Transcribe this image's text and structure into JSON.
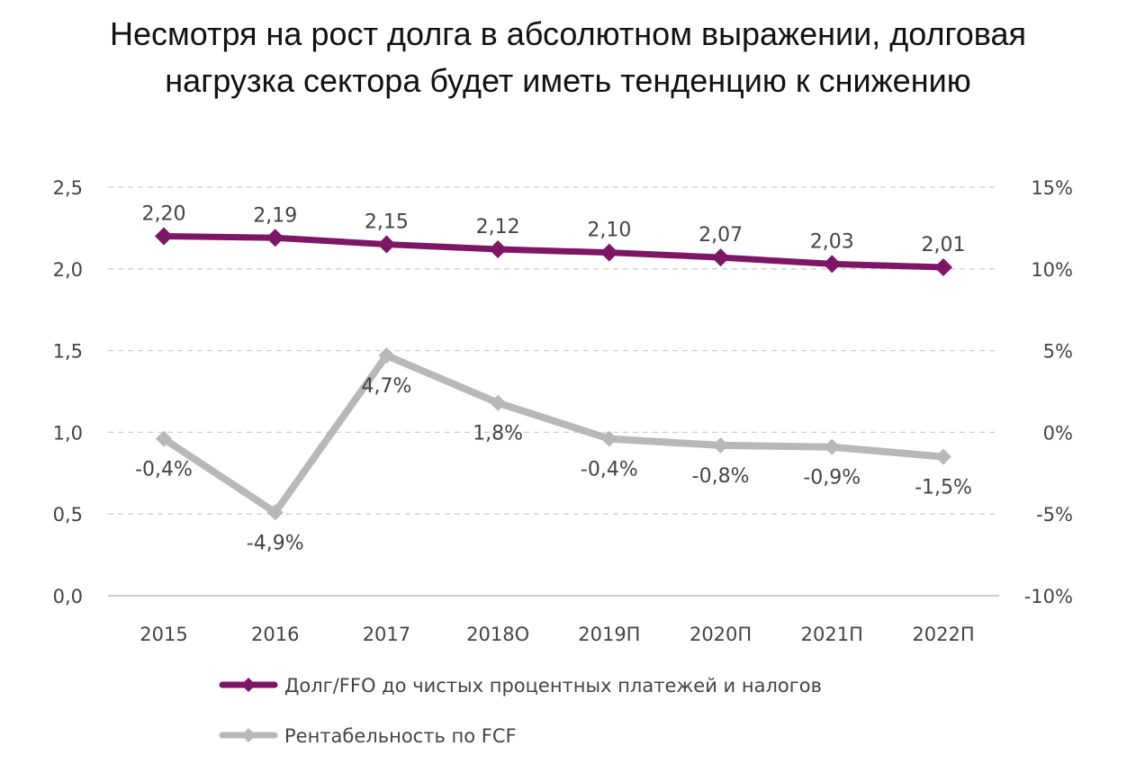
{
  "title_lines": [
    "Несмотря на рост долга в абсолютном выражении, долговая",
    "нагрузка сектора будет иметь тенденцию к снижению"
  ],
  "colors": {
    "primary_series": "#7e1566",
    "secondary_series": "#b8b8b8",
    "grid": "#cfcfcf"
  },
  "chart_data": {
    "type": "line",
    "categories": [
      "2015",
      "2016",
      "2017",
      "2018О",
      "2019П",
      "2020П",
      "2021П",
      "2022П"
    ],
    "y_left": {
      "min": 0,
      "max": 2.5,
      "step": 0.5,
      "tick_labels": [
        "0,0",
        "0,5",
        "1,0",
        "1,5",
        "2,0",
        "2,5"
      ]
    },
    "y_right": {
      "min": -10,
      "max": 15,
      "step": 5,
      "unit": "%",
      "tick_labels": [
        "-10%",
        "-5%",
        "0%",
        "5%",
        "10%",
        "15%"
      ]
    },
    "grid": "horizontal-dashed",
    "legend_position": "bottom-left",
    "series": [
      {
        "name": "Долг/FFO до чистых процентных платежей и налогов",
        "axis": "left",
        "color": "#7e1566",
        "values": [
          2.2,
          2.19,
          2.15,
          2.12,
          2.1,
          2.07,
          2.03,
          2.01
        ],
        "labels": [
          "2,20",
          "2,19",
          "2,15",
          "2,12",
          "2,10",
          "2,07",
          "2,03",
          "2,01"
        ],
        "label_position": "above"
      },
      {
        "name": "Рентабельность по FCF",
        "axis": "right",
        "color": "#b8b8b8",
        "values": [
          -0.4,
          -4.9,
          4.7,
          1.8,
          -0.4,
          -0.8,
          -0.9,
          -1.5
        ],
        "labels": [
          "-0,4%",
          "-4,9%",
          "4,7%",
          "1,8%",
          "-0,4%",
          "-0,8%",
          "-0,9%",
          "-1,5%"
        ],
        "label_position": "below"
      }
    ]
  }
}
